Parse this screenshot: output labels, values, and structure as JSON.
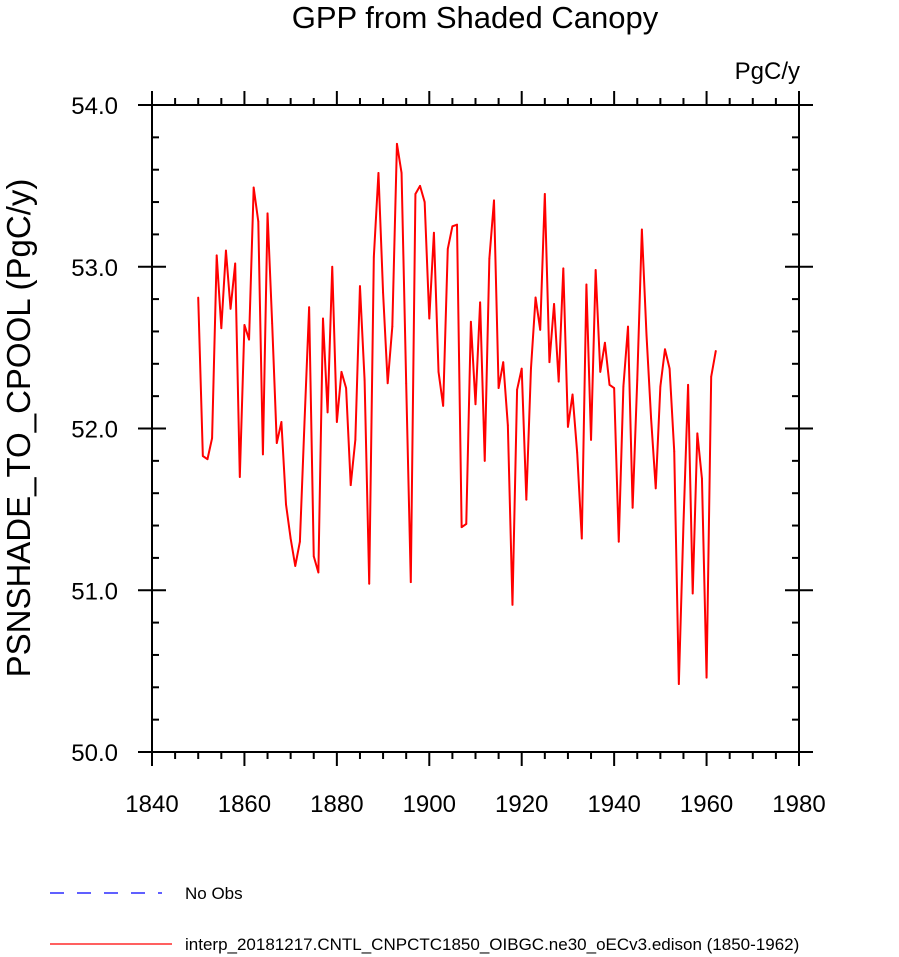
{
  "chart_data": {
    "type": "line",
    "title": "GPP from Shaded Canopy",
    "units": "PgC/y",
    "ylabel": "PSNSHADE_TO_CPOOL  (PgC/y)",
    "xlabel": "",
    "xlim": [
      1840,
      1980
    ],
    "ylim": [
      50.0,
      54.0
    ],
    "xticks": [
      "1840",
      "1860",
      "1880",
      "1900",
      "1920",
      "1940",
      "1960",
      "1980"
    ],
    "yticks": [
      "50.0",
      "51.0",
      "52.0",
      "53.0",
      "54.0"
    ],
    "legend": [
      "No Obs",
      "interp_20181217.CNTL_CNPCTC1850_OIBGC.ne30_oECv3.edison (1850-1962)"
    ],
    "series": [
      {
        "name": "interp_20181217.CNTL_CNPCTC1850_OIBGC.ne30_oECv3.edison (1850-1962)",
        "color": "#ff0000",
        "x": [
          1850,
          1851,
          1852,
          1853,
          1854,
          1855,
          1856,
          1857,
          1858,
          1859,
          1860,
          1861,
          1862,
          1863,
          1864,
          1865,
          1866,
          1867,
          1868,
          1869,
          1870,
          1871,
          1872,
          1873,
          1874,
          1875,
          1876,
          1877,
          1878,
          1879,
          1880,
          1881,
          1882,
          1883,
          1884,
          1885,
          1886,
          1887,
          1888,
          1889,
          1890,
          1891,
          1892,
          1893,
          1894,
          1895,
          1896,
          1897,
          1898,
          1899,
          1900,
          1901,
          1902,
          1903,
          1904,
          1905,
          1906,
          1907,
          1908,
          1909,
          1910,
          1911,
          1912,
          1913,
          1914,
          1915,
          1916,
          1917,
          1918,
          1919,
          1920,
          1921,
          1922,
          1923,
          1924,
          1925,
          1926,
          1927,
          1928,
          1929,
          1930,
          1931,
          1932,
          1933,
          1934,
          1935,
          1936,
          1937,
          1938,
          1939,
          1940,
          1941,
          1942,
          1943,
          1944,
          1945,
          1946,
          1947,
          1948,
          1949,
          1950,
          1951,
          1952,
          1953,
          1954,
          1955,
          1956,
          1957,
          1958,
          1959,
          1960,
          1961,
          1962
        ],
        "values": [
          52.81,
          51.83,
          51.81,
          51.94,
          53.07,
          52.62,
          53.1,
          52.74,
          53.02,
          51.7,
          52.64,
          52.55,
          53.49,
          53.28,
          51.84,
          53.33,
          52.65,
          51.91,
          52.04,
          51.53,
          51.32,
          51.15,
          51.3,
          52.04,
          52.75,
          51.21,
          51.11,
          52.68,
          52.1,
          53.0,
          52.04,
          52.35,
          52.25,
          51.65,
          51.93,
          52.88,
          52.3,
          51.04,
          53.06,
          53.58,
          52.84,
          52.28,
          52.63,
          53.76,
          53.58,
          52.28,
          51.05,
          53.45,
          53.5,
          53.4,
          52.68,
          53.21,
          52.35,
          52.14,
          53.11,
          53.25,
          53.26,
          51.39,
          51.41,
          52.66,
          52.15,
          52.78,
          51.8,
          53.05,
          53.41,
          52.25,
          52.41,
          52.02,
          50.91,
          52.24,
          52.37,
          51.56,
          52.37,
          52.81,
          52.61,
          53.45,
          52.41,
          52.77,
          52.29,
          52.99,
          52.01,
          52.21,
          51.85,
          51.32,
          52.89,
          51.93,
          52.98,
          52.35,
          52.53,
          52.27,
          52.25,
          51.3,
          52.26,
          52.63,
          51.51,
          52.3,
          53.23,
          52.58,
          52.06,
          51.63,
          52.26,
          52.49,
          52.37,
          51.86,
          50.42,
          51.41,
          52.27,
          50.98,
          51.97,
          51.69,
          50.46,
          52.32,
          52.48
        ]
      }
    ]
  }
}
